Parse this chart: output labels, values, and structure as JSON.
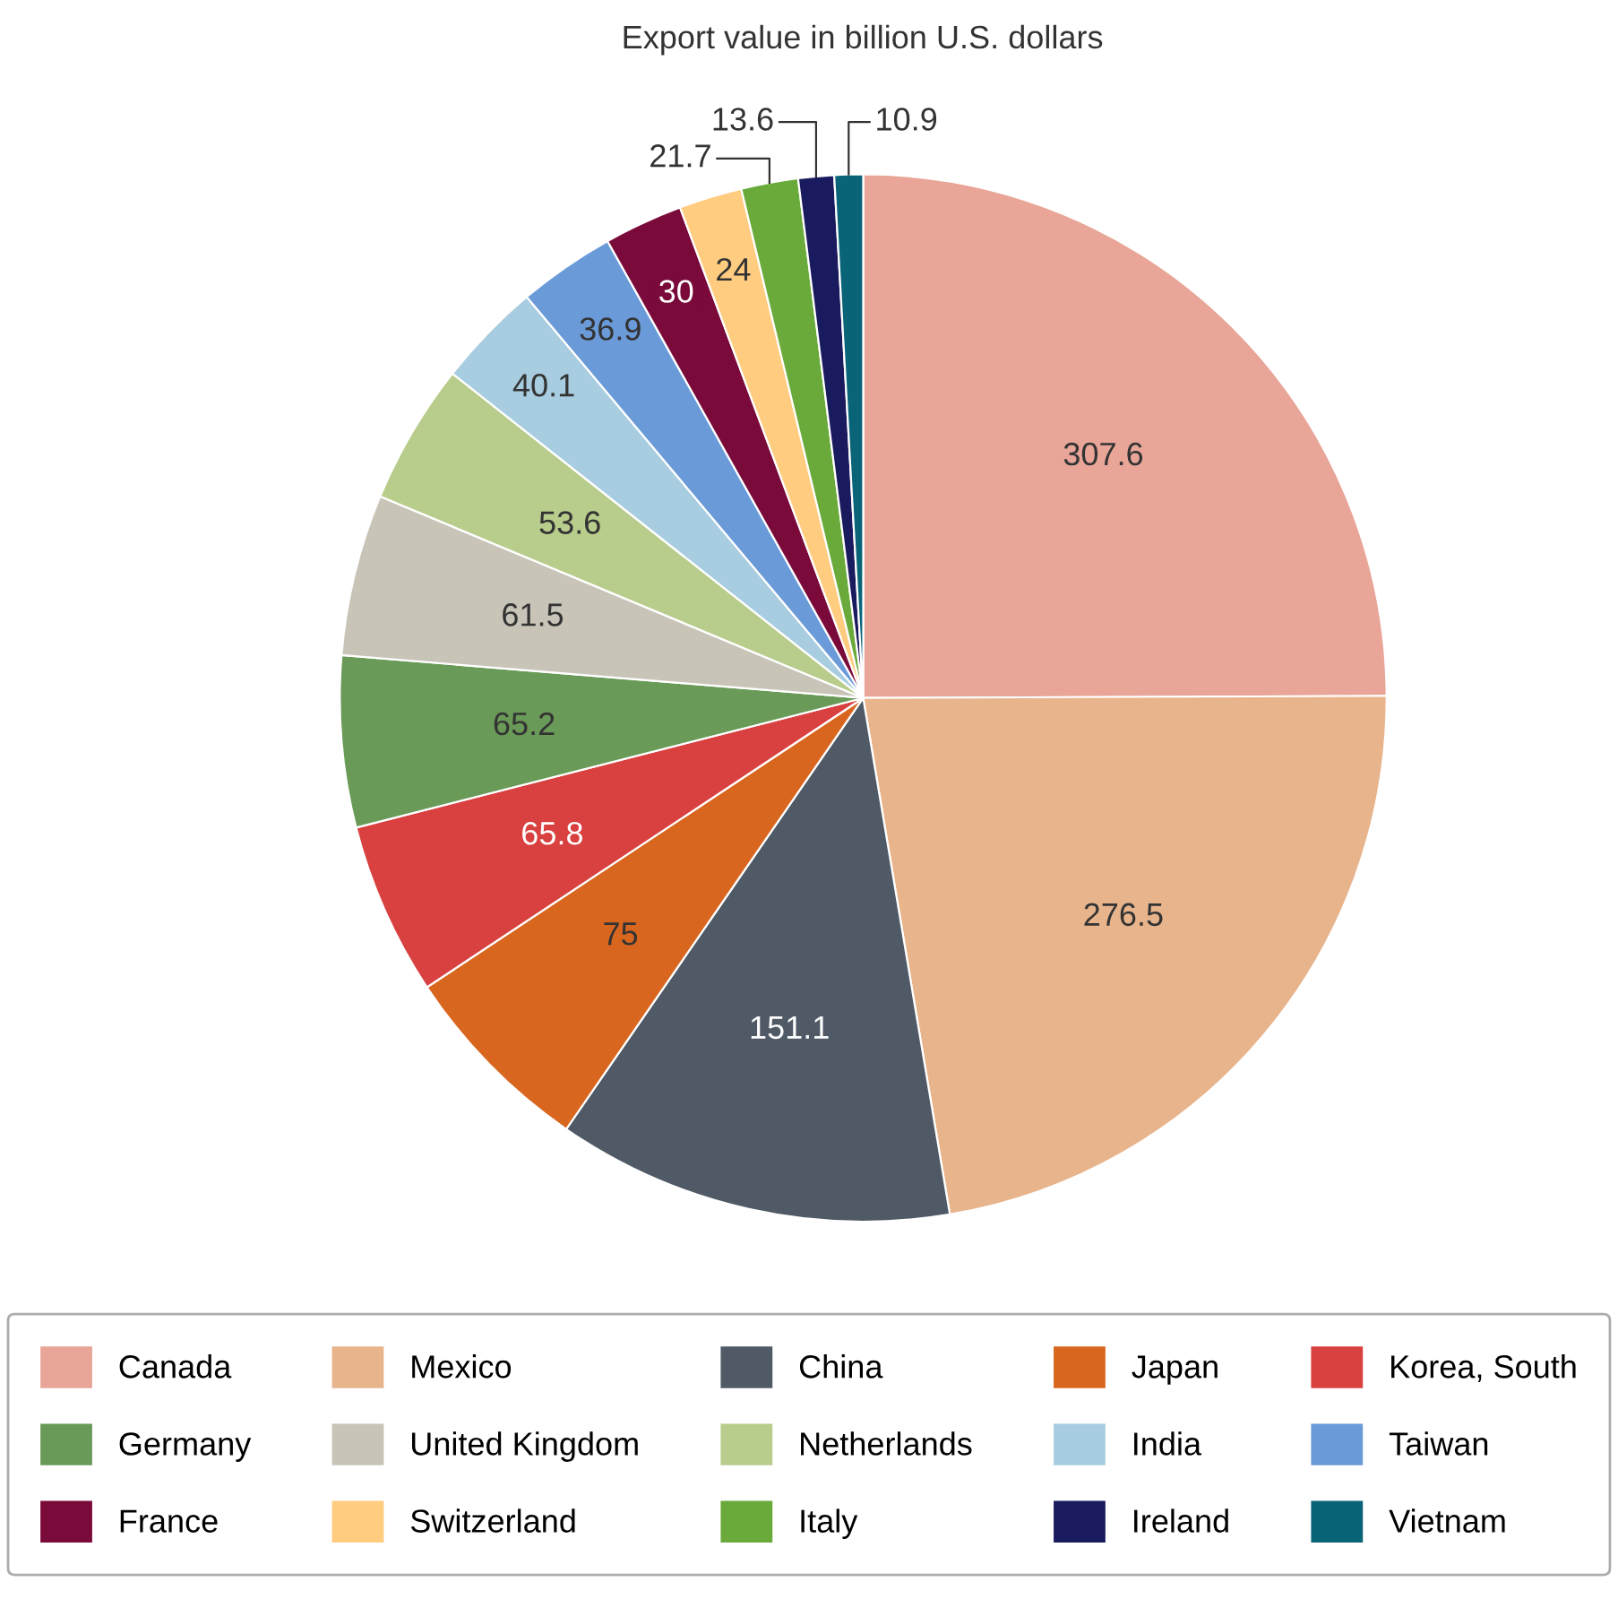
{
  "chart_data": {
    "type": "pie",
    "title": "Export value in billion U.S. dollars",
    "categories": [
      "Canada",
      "Mexico",
      "China",
      "Japan",
      "Korea, South",
      "Germany",
      "United Kingdom",
      "Netherlands",
      "India",
      "Taiwan",
      "France",
      "Switzerland",
      "Italy",
      "Ireland",
      "Vietnam"
    ],
    "values": [
      307.6,
      276.5,
      151.1,
      75,
      65.8,
      65.2,
      61.5,
      53.6,
      40.1,
      36.9,
      30,
      24,
      21.7,
      13.6,
      10.9
    ],
    "colors": [
      "#e8a598",
      "#e8b48c",
      "#4f5a66",
      "#d9661f",
      "#d94040",
      "#6a9a58",
      "#c8c4b8",
      "#b8cc8c",
      "#a8cce0",
      "#6a9ad8",
      "#7a0a3a",
      "#ffcc80",
      "#6aaa3a",
      "#1a1a5e",
      "#0a6478"
    ],
    "data_labels": true,
    "legend": "bottom"
  }
}
